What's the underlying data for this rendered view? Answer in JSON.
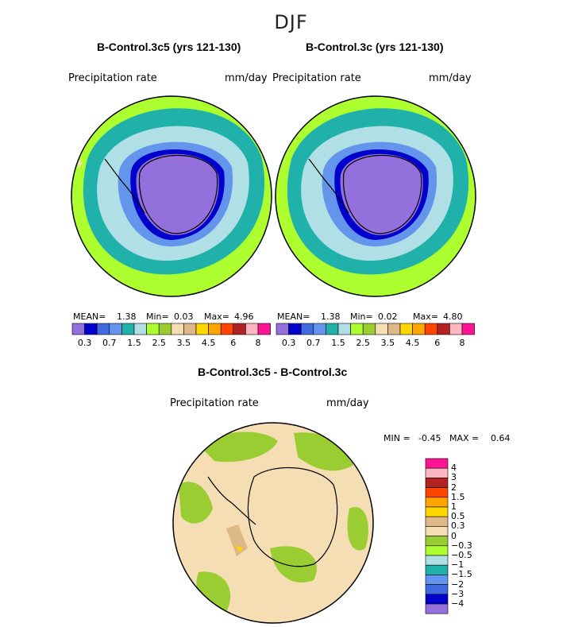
{
  "season": "DJF",
  "colors": {
    "scale": [
      "#9370db",
      "#0000cd",
      "#4169e1",
      "#6495ed",
      "#20b2aa",
      "#b0e0e6",
      "#adff2f",
      "#9acd32",
      "#f5deb3",
      "#deb887",
      "#ffd700",
      "#ffa500",
      "#ff4500",
      "#b22222",
      "#ffb6c1",
      "#ff1493"
    ],
    "outline": "#000000",
    "antarctica_black": "#000000"
  },
  "chart_data": [
    {
      "type": "heatmap",
      "title": "B-Control.3c5 (yrs 121-130)",
      "variable": "Precipitation rate",
      "units": "mm/day",
      "projection": "south-polar",
      "stats": {
        "mean_label": "MEAN=",
        "mean": "1.38",
        "min_label": "Min=",
        "min": "0.03",
        "max_label": "Max=",
        "max": "4.96"
      },
      "colorbar_ticks": [
        "0.3",
        "0.7",
        "1.5",
        "2.5",
        "3.5",
        "4.5",
        "6",
        "8"
      ]
    },
    {
      "type": "heatmap",
      "title": "B-Control.3c (yrs 121-130)",
      "variable": "Precipitation rate",
      "units": "mm/day",
      "projection": "south-polar",
      "stats": {
        "mean_label": "MEAN=",
        "mean": "1.38",
        "min_label": "Min=",
        "min": "0.02",
        "max_label": "Max=",
        "max": "4.80"
      },
      "colorbar_ticks": [
        "0.3",
        "0.7",
        "1.5",
        "2.5",
        "3.5",
        "4.5",
        "6",
        "8"
      ]
    },
    {
      "type": "heatmap",
      "title": "B-Control.3c5 - B-Control.3c",
      "variable": "Precipitation rate",
      "units": "mm/day",
      "projection": "south-polar",
      "stats": {
        "min_label": "MIN =",
        "min": "-0.45",
        "max_label": "MAX =",
        "max": "0.64"
      },
      "colorbar_ticks": [
        "4",
        "3",
        "2",
        "1.5",
        "1",
        "0.5",
        "0.3",
        "0",
        "−0.3",
        "−0.5",
        "−1",
        "−1.5",
        "−2",
        "−3",
        "−4"
      ]
    }
  ]
}
